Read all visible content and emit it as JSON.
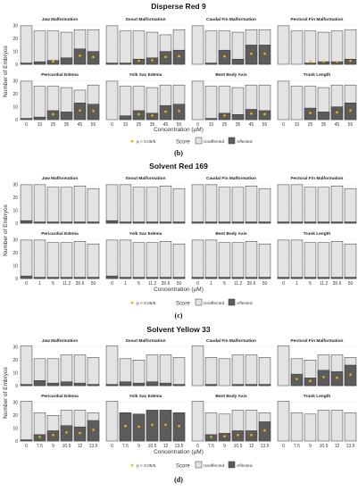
{
  "chart_data": [
    {
      "type": "bar",
      "title": "Disperse Red 9",
      "panel_label": "(b)",
      "xlabel": "Concentration (µM)",
      "ylabel": "Number of Embryos",
      "ylim": [
        0,
        30
      ],
      "yticks": [
        0,
        10,
        20,
        30
      ],
      "categories": [
        "0",
        "10",
        "25",
        "35",
        "45",
        "55"
      ],
      "stack_series": [
        "Unaffected",
        "Affected"
      ],
      "panels": [
        {
          "title": "Jaw Malformation",
          "total": [
            30,
            26,
            26,
            25,
            27,
            27
          ],
          "affected": [
            1,
            2,
            3,
            5,
            12,
            10
          ],
          "significant": [
            false,
            false,
            true,
            false,
            true,
            true
          ]
        },
        {
          "title": "Snout Malformation",
          "total": [
            30,
            26,
            26,
            25,
            23,
            27
          ],
          "affected": [
            1,
            1,
            4,
            5,
            10,
            11
          ],
          "significant": [
            false,
            false,
            true,
            true,
            true,
            true
          ]
        },
        {
          "title": "Caudal Fin Malformation",
          "total": [
            30,
            26,
            26,
            25,
            27,
            27
          ],
          "affected": [
            0,
            1,
            11,
            4,
            15,
            15
          ],
          "significant": [
            false,
            false,
            true,
            false,
            true,
            true
          ]
        },
        {
          "title": "Pectoral Fin Malformation",
          "total": [
            30,
            26,
            26,
            25,
            26,
            27
          ],
          "affected": [
            0,
            0,
            1,
            2,
            2,
            4
          ],
          "significant": [
            false,
            false,
            true,
            true,
            true,
            true
          ]
        },
        {
          "title": "Pericardial Edema",
          "total": [
            30,
            26,
            26,
            25,
            23,
            27
          ],
          "affected": [
            1,
            2,
            7,
            6,
            13,
            12
          ],
          "significant": [
            false,
            false,
            true,
            false,
            true,
            true
          ]
        },
        {
          "title": "Yolk Sac Edema",
          "total": [
            30,
            26,
            26,
            25,
            27,
            27
          ],
          "affected": [
            0,
            3,
            7,
            5,
            11,
            12
          ],
          "significant": [
            false,
            false,
            true,
            true,
            true,
            true
          ]
        },
        {
          "title": "Bent Body Axis",
          "total": [
            30,
            26,
            26,
            25,
            27,
            27
          ],
          "affected": [
            0,
            1,
            5,
            4,
            8,
            7
          ],
          "significant": [
            false,
            false,
            true,
            false,
            true,
            true
          ]
        },
        {
          "title": "Trunk Length",
          "total": [
            30,
            26,
            26,
            25,
            27,
            27
          ],
          "affected": [
            0,
            0,
            9,
            6,
            10,
            13
          ],
          "significant": [
            false,
            false,
            true,
            false,
            true,
            true
          ]
        }
      ],
      "legend": {
        "sig_label": "p < 0.05/5",
        "score_title": "Score",
        "entries": [
          "Unaffected",
          "Affected"
        ]
      }
    },
    {
      "type": "bar",
      "title": "Solvent Red 169",
      "panel_label": "(c)",
      "xlabel": "Concentration (µM)",
      "ylabel": "Number of Embryos",
      "ylim": [
        0,
        30
      ],
      "yticks": [
        0,
        10,
        20,
        30
      ],
      "categories": [
        "0",
        "1",
        "5",
        "11.2",
        "35.6",
        "50"
      ],
      "stack_series": [
        "Unaffected",
        "Affected"
      ],
      "panels": [
        {
          "title": "Jaw Malformation",
          "total": [
            30,
            30,
            28,
            28,
            29,
            27
          ],
          "affected": [
            2,
            1,
            1,
            1,
            1,
            1
          ],
          "significant": [
            false,
            false,
            false,
            false,
            false,
            false
          ]
        },
        {
          "title": "Snout Malformation",
          "total": [
            30,
            30,
            28,
            28,
            29,
            27
          ],
          "affected": [
            2,
            1,
            1,
            1,
            1,
            1
          ],
          "significant": [
            false,
            false,
            false,
            false,
            false,
            false
          ]
        },
        {
          "title": "Caudal Fin Malformation",
          "total": [
            30,
            30,
            28,
            28,
            29,
            27
          ],
          "affected": [
            1,
            1,
            1,
            1,
            1,
            1
          ],
          "significant": [
            false,
            false,
            false,
            false,
            false,
            false
          ]
        },
        {
          "title": "Pectoral Fin Malformation",
          "total": [
            30,
            30,
            28,
            28,
            29,
            27
          ],
          "affected": [
            1,
            1,
            1,
            1,
            1,
            1
          ],
          "significant": [
            false,
            false,
            false,
            false,
            false,
            false
          ]
        },
        {
          "title": "Pericardial Edema",
          "total": [
            30,
            30,
            28,
            28,
            29,
            27
          ],
          "affected": [
            2,
            1,
            1,
            1,
            1,
            1
          ],
          "significant": [
            false,
            false,
            false,
            false,
            false,
            false
          ]
        },
        {
          "title": "Yolk Sac Edema",
          "total": [
            30,
            30,
            28,
            28,
            29,
            27
          ],
          "affected": [
            2,
            1,
            1,
            1,
            1,
            1
          ],
          "significant": [
            false,
            false,
            false,
            false,
            false,
            false
          ]
        },
        {
          "title": "Bent Body Axis",
          "total": [
            30,
            30,
            28,
            28,
            29,
            27
          ],
          "affected": [
            1,
            1,
            1,
            1,
            1,
            1
          ],
          "significant": [
            false,
            false,
            false,
            false,
            false,
            false
          ]
        },
        {
          "title": "Trunk Length",
          "total": [
            30,
            30,
            28,
            28,
            29,
            27
          ],
          "affected": [
            1,
            1,
            1,
            1,
            1,
            1
          ],
          "significant": [
            false,
            false,
            false,
            false,
            false,
            false
          ]
        }
      ],
      "legend": {
        "sig_label": "p < 0.05/5",
        "score_title": "Score",
        "entries": [
          "Unaffected",
          "Affected"
        ]
      }
    },
    {
      "type": "bar",
      "title": "Solvent Yellow 33",
      "panel_label": "(d)",
      "xlabel": "Concentration (µM)",
      "ylabel": "Number of Embryos",
      "ylim": [
        0,
        30
      ],
      "yticks": [
        0,
        10,
        20,
        30
      ],
      "categories": [
        "0",
        "7.5",
        "9",
        "10.5",
        "12",
        "13.5"
      ],
      "stack_series": [
        "Unaffected",
        "Affected"
      ],
      "panels": [
        {
          "title": "Jaw Malformation",
          "total": [
            31,
            21,
            21,
            24,
            24,
            22
          ],
          "affected": [
            1,
            4,
            2,
            3,
            2,
            1
          ],
          "significant": [
            false,
            false,
            false,
            false,
            false,
            false
          ]
        },
        {
          "title": "Snout Malformation",
          "total": [
            31,
            21,
            20,
            24,
            24,
            22
          ],
          "affected": [
            1,
            3,
            2,
            3,
            2,
            1
          ],
          "significant": [
            false,
            false,
            false,
            false,
            false,
            false
          ]
        },
        {
          "title": "Caudal Fin Malformation",
          "total": [
            31,
            22,
            21,
            24,
            24,
            22
          ],
          "affected": [
            0,
            1,
            0,
            1,
            1,
            1
          ],
          "significant": [
            false,
            false,
            false,
            false,
            false,
            false
          ]
        },
        {
          "title": "Pectoral Fin Malformation",
          "total": [
            31,
            21,
            20,
            24,
            24,
            22
          ],
          "affected": [
            0,
            9,
            6,
            12,
            11,
            16
          ],
          "significant": [
            false,
            true,
            true,
            true,
            true,
            true
          ]
        },
        {
          "title": "Pericardial Edema",
          "total": [
            31,
            22,
            20,
            24,
            24,
            22
          ],
          "affected": [
            1,
            5,
            8,
            12,
            11,
            16
          ],
          "significant": [
            false,
            true,
            true,
            true,
            true,
            true
          ]
        },
        {
          "title": "Yolk Sac Edema",
          "total": [
            31,
            22,
            21,
            24,
            24,
            22
          ],
          "affected": [
            0,
            22,
            21,
            24,
            24,
            22
          ],
          "significant": [
            false,
            true,
            true,
            true,
            true,
            true
          ]
        },
        {
          "title": "Bent Body Axis",
          "total": [
            31,
            22,
            21,
            24,
            24,
            22
          ],
          "affected": [
            0,
            5,
            6,
            8,
            8,
            15
          ],
          "significant": [
            false,
            true,
            true,
            true,
            true,
            true
          ]
        },
        {
          "title": "Trunk Length",
          "total": [
            31,
            22,
            21,
            24,
            24,
            22
          ],
          "affected": [
            0,
            0,
            0,
            0,
            0,
            0
          ],
          "significant": [
            false,
            false,
            false,
            false,
            false,
            false
          ]
        }
      ],
      "legend": {
        "sig_label": "p < 0.05/5",
        "score_title": "Score",
        "entries": [
          "Unaffected",
          "Affected"
        ]
      }
    }
  ],
  "colors": {
    "unaffected": "#e3e3e3",
    "affected": "#5c5c5c",
    "bar_outline": "#333333",
    "significance_star": "#f5b800",
    "axis_text": "#333333",
    "grid": "#eeeeee"
  },
  "icons": {
    "significance_marker": "star-dot"
  }
}
